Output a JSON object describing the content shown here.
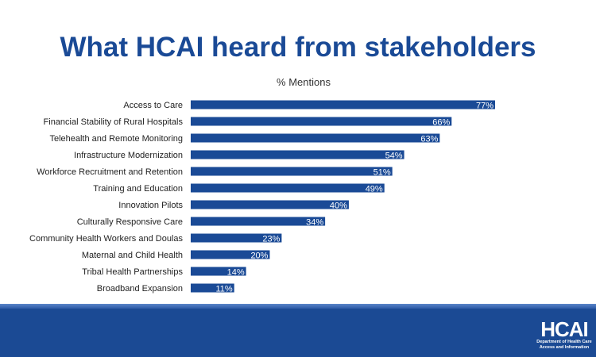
{
  "title": "What HCAI heard from stakeholders",
  "chart_data": {
    "type": "bar",
    "orientation": "horizontal",
    "title": "% Mentions",
    "categories": [
      "Access to Care",
      "Financial Stability of Rural Hospitals",
      "Telehealth and Remote Monitoring",
      "Infrastructure Modernization",
      "Workforce Recruitment and Retention",
      "Training and Education",
      "Innovation Pilots",
      "Culturally Responsive Care",
      "Community Health Workers and Doulas",
      "Maternal and Child Health",
      "Tribal Health Partnerships",
      "Broadband Expansion"
    ],
    "values": [
      77,
      66,
      63,
      54,
      51,
      49,
      40,
      34,
      23,
      20,
      14,
      11
    ],
    "data_labels": [
      "77%",
      "66%",
      "63%",
      "54%",
      "51%",
      "49%",
      "40%",
      "34%",
      "23%",
      "20%",
      "14%",
      "11%"
    ],
    "xlim": [
      0,
      100
    ],
    "grid": false,
    "bar_color": "#1a4a96"
  },
  "footer": {
    "logo_text": "HCAI",
    "logo_subtitle_1": "Department of Health Care",
    "logo_subtitle_2": "Access and Information",
    "color": "#1b4a94"
  }
}
